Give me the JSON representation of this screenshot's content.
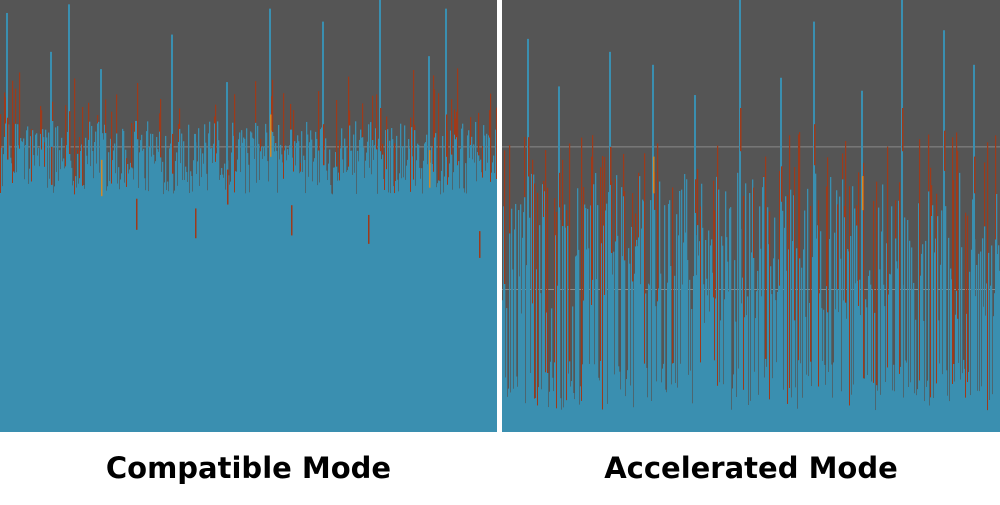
{
  "colors": {
    "background": "#555555",
    "bar": "#3a8fb0",
    "spike_red": "#9e3a1a",
    "spike_orange": "#d08a2a",
    "gridline": "#8a8a8a"
  },
  "chart_data": [
    {
      "type": "bar",
      "title": "Compatible Mode",
      "xlabel": "",
      "ylabel": "",
      "ylim": [
        0,
        100
      ],
      "grid": true,
      "gridlines": [
        33,
        66
      ],
      "series": [
        {
          "baseline_band": [
            55,
            72
          ],
          "spike_band": [
            60,
            85
          ],
          "tall_spikes": [
            97,
            88,
            99,
            84,
            72,
            92,
            69,
            81,
            98,
            70,
            95,
            67,
            100,
            87,
            98,
            62
          ]
        }
      ]
    },
    {
      "type": "bar",
      "title": "Accelerated Mode",
      "xlabel": "",
      "ylabel": "",
      "ylim": [
        0,
        100
      ],
      "grid": true,
      "gridlines": [
        33,
        66
      ],
      "series": [
        {
          "baseline_band": [
            5,
            60
          ],
          "spike_band": [
            50,
            70
          ],
          "tall_spikes": [
            91,
            80,
            88,
            85,
            78,
            100,
            82,
            95,
            79,
            100,
            93,
            85
          ]
        }
      ]
    }
  ]
}
